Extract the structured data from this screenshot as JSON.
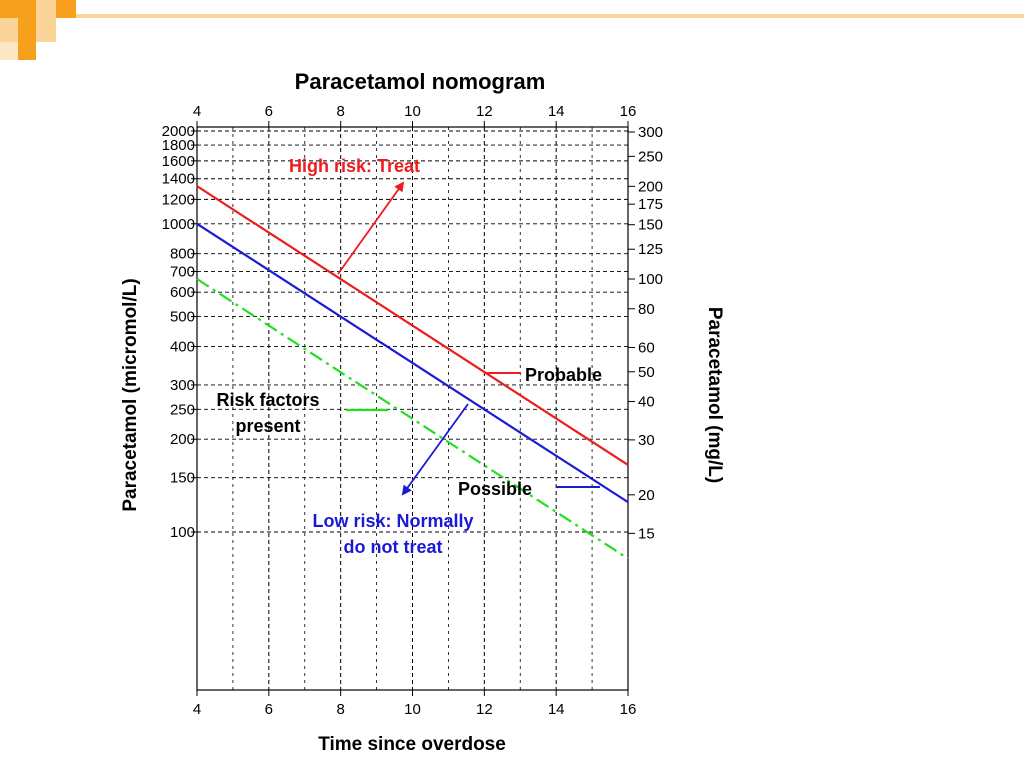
{
  "theme": {
    "accent_orange": "#f6a01e",
    "accent_light": "#fbd49a",
    "red": "#ee1c1c",
    "blue": "#1a1ad6",
    "green": "#22dd22"
  },
  "chart_data": {
    "type": "line",
    "title": "Paracetamol nomogram",
    "xlabel": "Time since overdose",
    "ylabel_left": "Paracetamol (micromol/L)",
    "ylabel_right": "Paracetamol (mg/L)",
    "x_ticks": [
      "4",
      "6",
      "8",
      "10",
      "12",
      "14",
      "16"
    ],
    "xlim": [
      4,
      16
    ],
    "left_ticks": [
      {
        "value": 2000,
        "label": "2000"
      },
      {
        "value": 1800,
        "label": "1800"
      },
      {
        "value": 1600,
        "label": "1600"
      },
      {
        "value": 1400,
        "label": "1400"
      },
      {
        "value": 1200,
        "label": "1200"
      },
      {
        "value": 1000,
        "label": "1000"
      },
      {
        "value": 800,
        "label": "800"
      },
      {
        "value": 700,
        "label": "700"
      },
      {
        "value": 600,
        "label": "600"
      },
      {
        "value": 500,
        "label": "500"
      },
      {
        "value": 400,
        "label": "400"
      },
      {
        "value": 300,
        "label": "300"
      },
      {
        "value": 250,
        "label": "250"
      },
      {
        "value": 200,
        "label": "200"
      },
      {
        "value": 150,
        "label": "150"
      },
      {
        "value": 100,
        "label": "100"
      }
    ],
    "left_scale": "log",
    "right_ticks": [
      {
        "label": "300",
        "left_equiv": 1985
      },
      {
        "label": "250",
        "left_equiv": 1655
      },
      {
        "label": "200",
        "left_equiv": 1323
      },
      {
        "label": "175",
        "left_equiv": 1158
      },
      {
        "label": "150",
        "left_equiv": 993
      },
      {
        "label": "125",
        "left_equiv": 827
      },
      {
        "label": "100",
        "left_equiv": 662
      },
      {
        "label": "80",
        "left_equiv": 530
      },
      {
        "label": "60",
        "left_equiv": 397
      },
      {
        "label": "50",
        "left_equiv": 331
      },
      {
        "label": "40",
        "left_equiv": 265
      },
      {
        "label": "30",
        "left_equiv": 199
      },
      {
        "label": "20",
        "left_equiv": 132
      },
      {
        "label": "15",
        "left_equiv": 99
      }
    ],
    "series": [
      {
        "name": "Probable",
        "color": "#ee1c1c",
        "style": "solid",
        "x": [
          4,
          16
        ],
        "y": [
          1325,
          165
        ]
      },
      {
        "name": "Possible",
        "color": "#1a1ad6",
        "style": "solid",
        "x": [
          4,
          16
        ],
        "y": [
          1000,
          125
        ]
      },
      {
        "name": "Risk factors present",
        "color": "#22dd22",
        "style": "dashdot",
        "x": [
          4,
          16
        ],
        "y": [
          662,
          82
        ]
      }
    ],
    "grid": "on",
    "annotations": {
      "high_risk": "High risk: Treat",
      "probable": "Probable",
      "possible": "Possible",
      "risk_factors_line1": "Risk factors",
      "risk_factors_line2": "present",
      "low_risk_line1": "Low risk: Normally",
      "low_risk_line2": "do not treat"
    }
  }
}
